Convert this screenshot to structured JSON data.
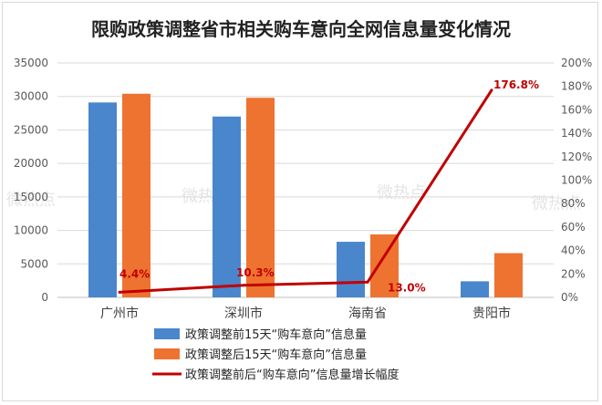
{
  "chart_data": {
    "type": "bar",
    "title": "限购政策调整省市相关购车意向全网信息量变化情况",
    "categories": [
      "广州市",
      "深圳市",
      "海南省",
      "贵阳市"
    ],
    "series": [
      {
        "name": "政策调整前15天“购车意向”信息量",
        "type": "bar",
        "axis": "left",
        "color": "#4a86cc",
        "values": [
          29100,
          27000,
          8300,
          2400
        ]
      },
      {
        "name": "政策调整后15天“购车意向”信息量",
        "type": "bar",
        "axis": "left",
        "color": "#ee7330",
        "values": [
          30400,
          29800,
          9400,
          6600
        ]
      },
      {
        "name": "政策调整前后“购车意向”信息量增长幅度",
        "type": "line",
        "axis": "right",
        "color": "#c00000",
        "values": [
          4.4,
          10.3,
          13.0,
          176.8
        ],
        "labels": [
          "4.4%",
          "10.3%",
          "13.0%",
          "176.8%"
        ]
      }
    ],
    "ylim": [
      0,
      35000
    ],
    "yticks": [
      "0",
      "5000",
      "10000",
      "15000",
      "20000",
      "25000",
      "30000",
      "35000"
    ],
    "y2lim": [
      0,
      200
    ],
    "y2ticks": [
      "0%",
      "20%",
      "40%",
      "60%",
      "80%",
      "100%",
      "120%",
      "140%",
      "160%",
      "180%",
      "200%"
    ],
    "grid": true,
    "legend": "bottom"
  },
  "watermark": "微热点"
}
